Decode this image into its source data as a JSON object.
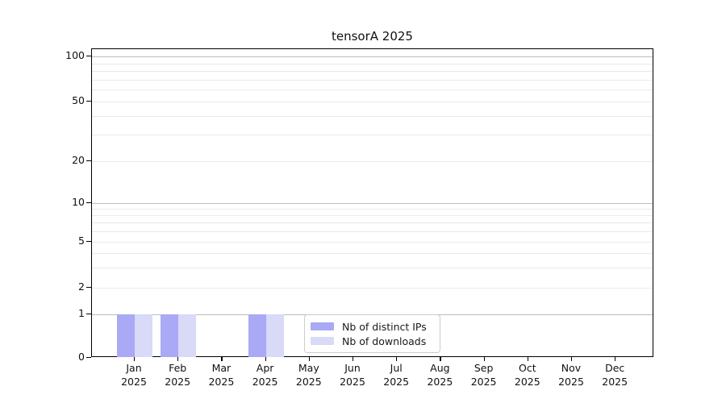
{
  "title": "tensorA 2025",
  "chart_data": {
    "type": "bar",
    "title": "tensorA 2025",
    "categories": [
      "Jan",
      "Feb",
      "Mar",
      "Apr",
      "May",
      "Jun",
      "Jul",
      "Aug",
      "Sep",
      "Oct",
      "Nov",
      "Dec"
    ],
    "year": "2025",
    "series": [
      {
        "name": "Nb of distinct IPs",
        "color": "#a9a9f5",
        "values": [
          1,
          1,
          0,
          1,
          0,
          0,
          0,
          0,
          0,
          0,
          0,
          0
        ]
      },
      {
        "name": "Nb of downloads",
        "color": "#d9d9f8",
        "values": [
          1,
          1,
          0,
          1,
          0,
          0,
          0,
          0,
          0,
          0,
          0,
          0
        ]
      }
    ],
    "xlabel": "",
    "ylabel": "",
    "yscale": "quasi-log",
    "y_ticks": [
      0,
      1,
      2,
      5,
      10,
      20,
      50,
      100
    ],
    "y_major_gridlines": [
      1,
      10,
      100
    ],
    "y_minor_gridlines": [
      2,
      3,
      4,
      5,
      6,
      7,
      8,
      9,
      20,
      30,
      40,
      50,
      60,
      70,
      80,
      90
    ],
    "ylim": [
      0,
      109
    ],
    "grid": "horizontal",
    "legend_position": "lower-center"
  },
  "colors": {
    "bar_dark": "#a9a9f5",
    "bar_light": "#d9d9f8",
    "grid_major": "#bcbcbc",
    "grid_minor": "#e9e9e9",
    "axis": "#000000"
  }
}
